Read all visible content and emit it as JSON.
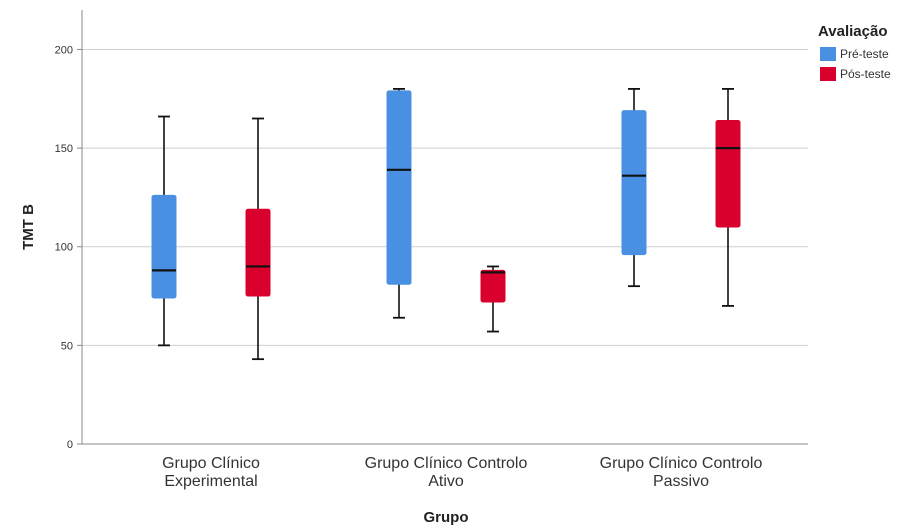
{
  "chart_data": {
    "type": "boxplot",
    "ylabel": "TMT B",
    "xlabel": "Grupo",
    "ylim": [
      0,
      220
    ],
    "yticks": [
      0,
      50,
      100,
      150,
      200
    ],
    "grid": "horizontal",
    "legend": {
      "title": "Avaliação",
      "placement": "top-right",
      "entries": [
        {
          "label": "Pré-teste",
          "color": "#4a90e2"
        },
        {
          "label": "Pós-teste",
          "color": "#d9002d"
        }
      ]
    },
    "categories": [
      [
        "Grupo Clínico",
        "Experimental"
      ],
      [
        "Grupo Clínico Controlo",
        "Ativo"
      ],
      [
        "Grupo Clínico Controlo",
        "Passivo"
      ]
    ],
    "series": [
      {
        "name": "Pré-teste",
        "color": "#4a90e2",
        "boxes": [
          {
            "min": 50,
            "q1": 74,
            "median": 88,
            "q3": 126,
            "max": 166
          },
          {
            "min": 64,
            "q1": 81,
            "median": 139,
            "q3": 179,
            "max": 180
          },
          {
            "min": 80,
            "q1": 96,
            "median": 136,
            "q3": 169,
            "max": 180
          }
        ]
      },
      {
        "name": "Pós-teste",
        "color": "#d9002d",
        "boxes": [
          {
            "min": 43,
            "q1": 75,
            "median": 90,
            "q3": 119,
            "max": 165
          },
          {
            "min": 57,
            "q1": 72,
            "median": 87,
            "q3": 88,
            "max": 90
          },
          {
            "min": 70,
            "q1": 110,
            "median": 150,
            "q3": 164,
            "max": 180
          }
        ]
      }
    ]
  }
}
